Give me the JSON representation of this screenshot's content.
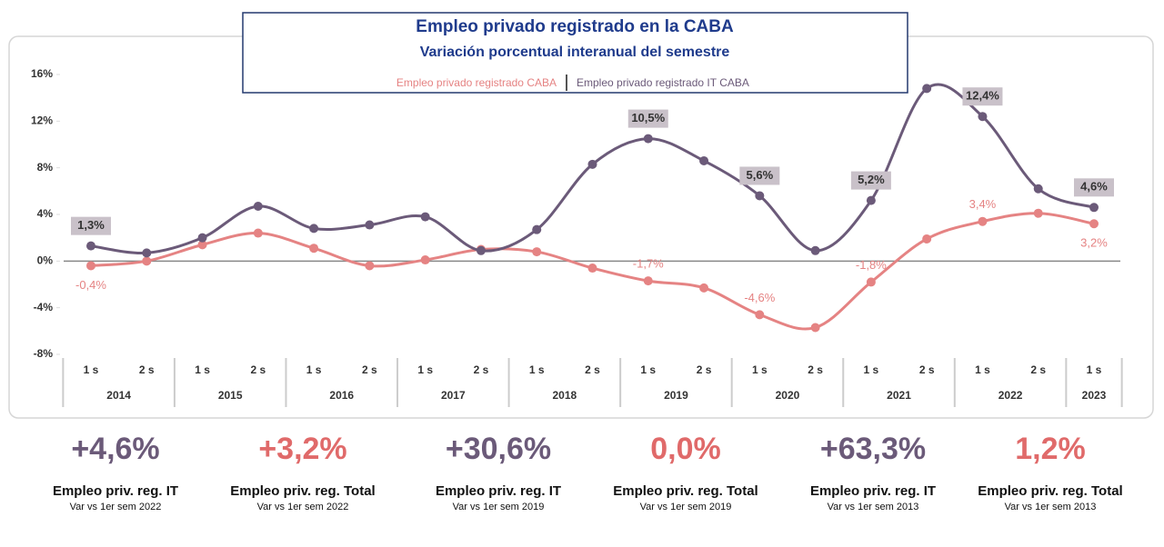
{
  "chart_data": {
    "type": "line",
    "title": "Empleo privado registrado en la CABA",
    "subtitle": "Variación porcentual interanual del semestre",
    "categories": [
      "1 s",
      "2 s",
      "1 s",
      "2 s",
      "1 s",
      "2 s",
      "1 s",
      "2 s",
      "1 s",
      "2 s",
      "1 s",
      "2 s",
      "1 s",
      "2 s",
      "1 s",
      "2 s",
      "1 s",
      "2 s",
      "1 s"
    ],
    "category_groups": [
      "2014",
      "2015",
      "2016",
      "2017",
      "2018",
      "2019",
      "2020",
      "2021",
      "2022",
      "2023"
    ],
    "series": [
      {
        "name": "Empleo privado registrado CABA",
        "color": "#e58383",
        "values": [
          -0.4,
          0.0,
          1.4,
          2.4,
          1.1,
          -0.4,
          0.1,
          1.0,
          0.8,
          -0.6,
          -1.7,
          -2.3,
          -4.6,
          -5.7,
          -1.8,
          1.9,
          3.4,
          4.1,
          3.2
        ],
        "value_labels": [
          "-0,4%",
          null,
          null,
          null,
          null,
          null,
          null,
          null,
          null,
          null,
          "-1,7%",
          null,
          "-4,6%",
          null,
          "-1,8%",
          null,
          "3,4%",
          null,
          "3,2%"
        ]
      },
      {
        "name": "Empleo privado registrado IT CABA",
        "color": "#6b5a79",
        "values": [
          1.3,
          0.7,
          2.0,
          4.7,
          2.8,
          3.1,
          3.8,
          0.9,
          2.7,
          8.3,
          10.5,
          8.6,
          5.6,
          0.9,
          5.2,
          14.8,
          12.4,
          6.2,
          4.6
        ],
        "value_labels": [
          "1,3%",
          null,
          null,
          null,
          null,
          null,
          null,
          null,
          null,
          null,
          "10,5%",
          null,
          "5,6%",
          null,
          "5,2%",
          null,
          "12,4%",
          null,
          "4,6%"
        ]
      }
    ],
    "ylim": [
      -8,
      16
    ],
    "yticks": [
      {
        "value": -8,
        "label": "-8%"
      },
      {
        "value": -4,
        "label": "-4%"
      },
      {
        "value": 0,
        "label": "0%"
      },
      {
        "value": 4,
        "label": "4%"
      },
      {
        "value": 8,
        "label": "8%"
      },
      {
        "value": 12,
        "label": "12%"
      },
      {
        "value": 16,
        "label": "16%"
      }
    ]
  },
  "summary": [
    {
      "value": "+4,6%",
      "label": "Empleo priv. reg. IT",
      "note": "Var vs 1er sem 2022",
      "color": "#6b5a79"
    },
    {
      "value": "+3,2%",
      "label": "Empleo priv. reg. Total",
      "note": "Var vs 1er sem 2022",
      "color": "#e06a6a"
    },
    {
      "value": "+30,6%",
      "label": "Empleo priv. reg. IT",
      "note": "Var vs 1er sem 2019",
      "color": "#6b5a79"
    },
    {
      "value": "0,0%",
      "label": "Empleo priv. reg. Total",
      "note": "Var vs 1er sem 2019",
      "color": "#e06a6a"
    },
    {
      "value": "+63,3%",
      "label": "Empleo priv. reg. IT",
      "note": "Var vs 1er sem 2013",
      "color": "#6b5a79"
    },
    {
      "value": "1,2%",
      "label": "Empleo priv. reg. Total",
      "note": "Var vs 1er sem 2013",
      "color": "#e06a6a"
    }
  ]
}
